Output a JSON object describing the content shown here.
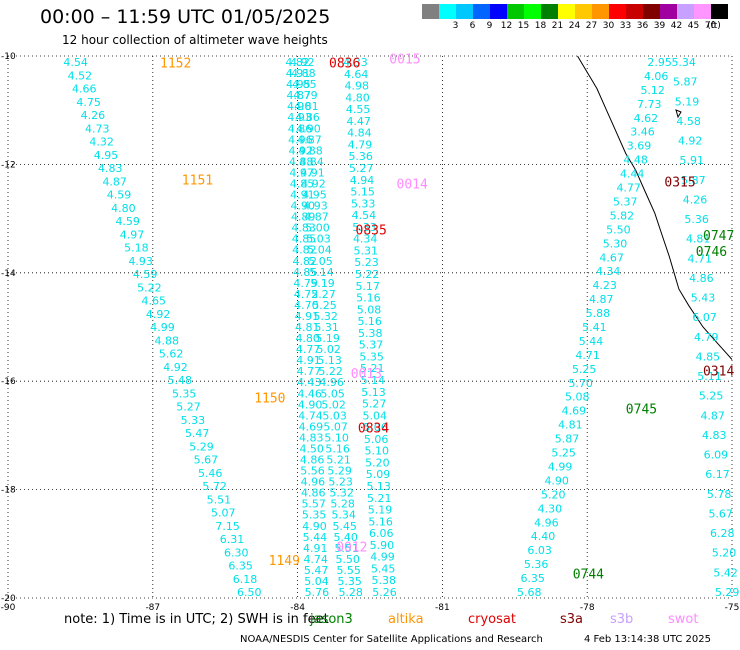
{
  "header": {
    "title": "00:00 – 11:59 UTC 01/05/2025",
    "subtitle": "12 hour collection of altimeter wave heights"
  },
  "scale": {
    "unit": "(ft)",
    "levels": [
      {
        "label": "",
        "color": "#808080"
      },
      {
        "label": "3",
        "color": "#00ffff"
      },
      {
        "label": "6",
        "color": "#00c8ff"
      },
      {
        "label": "9",
        "color": "#0064ff"
      },
      {
        "label": "12",
        "color": "#0000ff"
      },
      {
        "label": "15",
        "color": "#00c800"
      },
      {
        "label": "18",
        "color": "#00ff00"
      },
      {
        "label": "21",
        "color": "#008000"
      },
      {
        "label": "24",
        "color": "#ffff00"
      },
      {
        "label": "27",
        "color": "#ffc800"
      },
      {
        "label": "30",
        "color": "#ff9600"
      },
      {
        "label": "33",
        "color": "#ff0000"
      },
      {
        "label": "36",
        "color": "#c80000"
      },
      {
        "label": "39",
        "color": "#800000"
      },
      {
        "label": "42",
        "color": "#a000a0"
      },
      {
        "label": "45",
        "color": "#c8a0ff"
      },
      {
        "label": "70",
        "color": "#ff96ff"
      },
      {
        "label": "",
        "color": "#000000"
      }
    ]
  },
  "axes": {
    "lat_labels": [
      "-10",
      "-12",
      "-14",
      "-16",
      "-18",
      "-20"
    ],
    "lon_labels": [
      "-90",
      "-87",
      "-84",
      "-81",
      "-78",
      "-75"
    ]
  },
  "map_data": {
    "lon_range": [
      -90,
      -75
    ],
    "lat_range": [
      -20,
      -10
    ],
    "tracks": [
      {
        "name": "left-track",
        "color": "#00e0e8",
        "lon_top": -88.6,
        "lon_bottom": -85.0,
        "values": [
          "4.54",
          "4.52",
          "4.66",
          "4.75",
          "4.26",
          "4.73",
          "4.32",
          "4.95",
          "4.83",
          "4.87",
          "4.59",
          "4.80",
          "4.59",
          "4.97",
          "5.18",
          "4.93",
          "4.59",
          "5.22",
          "4.65",
          "4.92",
          "4.99",
          "4.88",
          "5.62",
          "4.92",
          "5.48",
          "5.35",
          "5.27",
          "5.33",
          "5.47",
          "5.29",
          "5.67",
          "5.46",
          "5.72",
          "5.51",
          "5.07",
          "7.15",
          "6.31",
          "6.30",
          "6.35",
          "6.18",
          "6.50"
        ]
      },
      {
        "name": "middle-track-a",
        "color": "#00e0e8",
        "lon_top": -84.0,
        "lon_bottom": -83.6,
        "values": [
          "4.82",
          "4.91",
          "4.95",
          "4.87",
          "4.90",
          "4.93",
          "4.86",
          "4.96",
          "4.92",
          "4.88",
          "4.97",
          "4.85",
          "4.91",
          "4.90",
          "4.89",
          "4.83",
          "4.85",
          "4.82",
          "4.82",
          "4.85",
          "4.79",
          "4.72",
          "4.70",
          "4.91",
          "4.81",
          "4.80",
          "4.77",
          "4.91",
          "4.77",
          "4.43",
          "4.46",
          "4.90",
          "4.74",
          "4.69",
          "4.83",
          "4.50",
          "4.86",
          "5.56",
          "4.96",
          "4.86",
          "5.57",
          "5.35",
          "4.90",
          "5.44",
          "4.91",
          "4.74",
          "5.47",
          "5.04",
          "5.76"
        ]
      },
      {
        "name": "middle-track-b",
        "color": "#00e0e8",
        "lon_top": -83.9,
        "lon_bottom": -82.9,
        "values": [
          "4.92",
          "4.88",
          "4.85",
          "4.79",
          "4.81",
          "4.86",
          "4.90",
          "4.87",
          "4.88",
          "4.84",
          "4.91",
          "4.92",
          "4.95",
          "4.93",
          "4.87",
          "5.00",
          "5.03",
          "5.04",
          "5.05",
          "5.14",
          "5.19",
          "5.27",
          "5.25",
          "5.32",
          "5.31",
          "5.19",
          "5.02",
          "5.13",
          "5.22",
          "4.96",
          "5.05",
          "5.02",
          "5.03",
          "5.07",
          "5.10",
          "5.16",
          "5.21",
          "5.29",
          "5.23",
          "5.32",
          "5.28",
          "5.34",
          "5.45",
          "5.40",
          "5.51",
          "5.50",
          "5.55",
          "5.35",
          "5.28"
        ]
      },
      {
        "name": "right-track",
        "color": "#00e0e8",
        "lon_top": -82.8,
        "lon_bottom": -82.2,
        "values": [
          "4.33",
          "4.64",
          "4.98",
          "4.80",
          "4.55",
          "4.47",
          "4.84",
          "4.79",
          "5.36",
          "5.27",
          "4.94",
          "5.15",
          "5.33",
          "4.54",
          "5.33",
          "4.34",
          "5.31",
          "5.23",
          "5.22",
          "5.17",
          "5.16",
          "5.08",
          "5.16",
          "5.38",
          "5.37",
          "5.35",
          "5.21",
          "5.14",
          "5.13",
          "5.27",
          "5.04",
          "5.06",
          "5.06",
          "5.10",
          "5.20",
          "5.09",
          "5.13",
          "5.21",
          "5.19",
          "5.16",
          "6.06",
          "5.90",
          "4.99",
          "5.45",
          "5.38",
          "5.26"
        ]
      },
      {
        "name": "coastal-track-a",
        "color": "#00e0e8",
        "lon_top": -76.5,
        "lon_bottom": -79.2,
        "values": [
          "2.95",
          "4.06",
          "5.12",
          "7.73",
          "4.62",
          "3.46",
          "3.69",
          "4.48",
          "4.44",
          "4.77",
          "5.37",
          "5.82",
          "5.50",
          "5.30",
          "4.67",
          "4.34",
          "4.23",
          "4.87",
          "5.88",
          "5.41",
          "5.44",
          "4.71",
          "5.25",
          "5.70",
          "5.08",
          "4.69",
          "4.81",
          "5.87",
          "5.25",
          "4.99",
          "4.90",
          "5.20",
          "4.30",
          "4.96",
          "4.40",
          "6.03",
          "5.36",
          "6.35",
          "5.68"
        ]
      },
      {
        "name": "coastal-track-b",
        "color": "#00e0e8",
        "lon_top": -76.0,
        "lon_bottom": -75.1,
        "values": [
          "5.34",
          "5.87",
          "5.19",
          "4.58",
          "4.92",
          "5.91",
          "5.87",
          "4.26",
          "5.36",
          "4.81",
          "4.71",
          "4.86",
          "5.43",
          "6.07",
          "4.79",
          "4.85",
          "5.11",
          "5.25",
          "4.87",
          "4.83",
          "6.09",
          "6.17",
          "5.78",
          "5.67",
          "6.28",
          "5.20",
          "5.42",
          "5.29"
        ]
      }
    ],
    "pass_times": [
      {
        "label": "1152",
        "color": "#ff9600",
        "lon": -86.85,
        "lat": -10.12
      },
      {
        "label": "1151",
        "color": "#ff9600",
        "lon": -86.4,
        "lat": -12.28
      },
      {
        "label": "1150",
        "color": "#ff9600",
        "lon": -84.9,
        "lat": -16.3
      },
      {
        "label": "1149",
        "color": "#ff9600",
        "lon": -84.6,
        "lat": -19.3
      },
      {
        "label": "0836",
        "color": "#e00000",
        "lon": -83.35,
        "lat": -10.12
      },
      {
        "label": "0835",
        "color": "#e00000",
        "lon": -82.8,
        "lat": -13.2
      },
      {
        "label": "0834",
        "color": "#e00000",
        "lon": -82.75,
        "lat": -16.85
      },
      {
        "label": "0015",
        "color": "#ff8cff",
        "lon": -82.1,
        "lat": -10.05
      },
      {
        "label": "0014",
        "color": "#ff8cff",
        "lon": -81.95,
        "lat": -12.35
      },
      {
        "label": "0013",
        "color": "#ff8cff",
        "lon": -82.9,
        "lat": -15.85
      },
      {
        "label": "0012",
        "color": "#ff8cff",
        "lon": -83.2,
        "lat": -19.05
      },
      {
        "label": "0315",
        "color": "#800000",
        "lon": -76.4,
        "lat": -12.32
      },
      {
        "label": "0314",
        "color": "#800000",
        "lon": -75.6,
        "lat": -15.8
      },
      {
        "label": "0747",
        "color": "#008000",
        "lon": -75.6,
        "lat": -13.3
      },
      {
        "label": "0746",
        "color": "#008000",
        "lon": -75.75,
        "lat": -13.6
      },
      {
        "label": "0745",
        "color": "#008000",
        "lon": -77.2,
        "lat": -16.5
      },
      {
        "label": "0744",
        "color": "#008000",
        "lon": -78.3,
        "lat": -19.55
      }
    ],
    "coastline": [
      [
        -78.2,
        -10.0
      ],
      [
        -78.0,
        -10.3
      ],
      [
        -77.8,
        -10.6
      ],
      [
        -77.6,
        -11.0
      ],
      [
        -77.4,
        -11.4
      ],
      [
        -77.2,
        -11.8
      ],
      [
        -77.0,
        -12.1
      ],
      [
        -76.8,
        -12.5
      ],
      [
        -76.6,
        -12.9
      ],
      [
        -76.45,
        -13.3
      ],
      [
        -76.3,
        -13.7
      ],
      [
        -76.2,
        -14.0
      ],
      [
        -76.1,
        -14.3
      ],
      [
        -75.9,
        -14.6
      ],
      [
        -75.6,
        -15.0
      ],
      [
        -75.3,
        -15.3
      ],
      [
        -75.1,
        -15.5
      ],
      [
        -75.0,
        -15.6
      ]
    ]
  },
  "footer": {
    "note": "note: 1) Time is in UTC; 2) SWH is in feet",
    "legend": [
      {
        "label": "jason3",
        "color": "#008000"
      },
      {
        "label": "altika",
        "color": "#ff9600"
      },
      {
        "label": "cryosat",
        "color": "#e00000"
      },
      {
        "label": "s3a",
        "color": "#800000"
      },
      {
        "label": "s3b",
        "color": "#c8a0ff"
      },
      {
        "label": "swot",
        "color": "#ff8cff"
      }
    ],
    "credit": "NOAA/NESDIS Center for Satellite Applications and Research",
    "timestamp": "4 Feb 13:14:38 UTC 2025"
  }
}
